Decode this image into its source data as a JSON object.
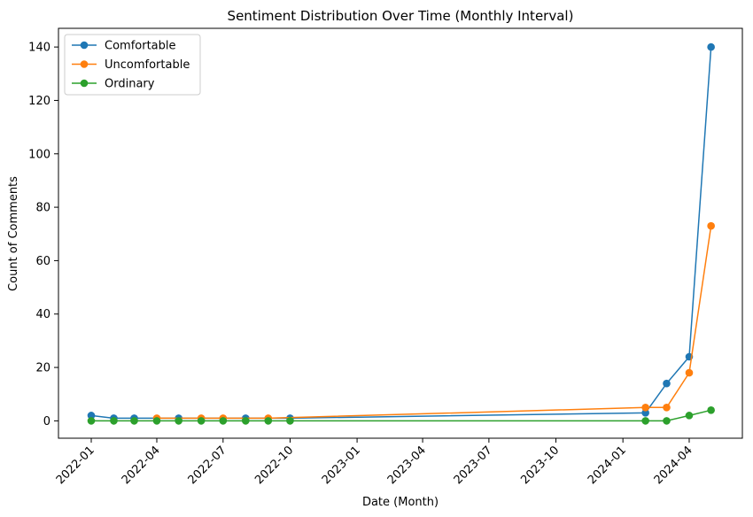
{
  "chart_data": {
    "type": "line",
    "title": "Sentiment Distribution Over Time (Monthly Interval)",
    "xlabel": "Date (Month)",
    "ylabel": "Count of Comments",
    "x_ticks": [
      "2022-01",
      "2022-04",
      "2022-07",
      "2022-10",
      "2023-01",
      "2023-04",
      "2023-07",
      "2023-10",
      "2024-01",
      "2024-04"
    ],
    "y_ticks": [
      0,
      20,
      40,
      60,
      80,
      100,
      120,
      140
    ],
    "ylim": [
      -6.5,
      147
    ],
    "xlim": [
      "2021-11-17",
      "2024-06-13"
    ],
    "grid": false,
    "legend_position": "upper-left",
    "series": [
      {
        "name": "Comfortable",
        "color": "#1f77b4",
        "points": [
          [
            "2022-01-01",
            2
          ],
          [
            "2022-02-01",
            1
          ],
          [
            "2022-03-01",
            1
          ],
          [
            "2022-05-01",
            1
          ],
          [
            "2022-08-01",
            1
          ],
          [
            "2022-10-01",
            1
          ],
          [
            "2024-02-01",
            3
          ],
          [
            "2024-03-01",
            14
          ],
          [
            "2024-04-01",
            24
          ],
          [
            "2024-05-01",
            140
          ]
        ]
      },
      {
        "name": "Uncomfortable",
        "color": "#ff7f0e",
        "points": [
          [
            "2022-04-01",
            1
          ],
          [
            "2022-06-01",
            1
          ],
          [
            "2022-07-01",
            1
          ],
          [
            "2022-09-01",
            1
          ],
          [
            "2024-02-01",
            5
          ],
          [
            "2024-03-01",
            5
          ],
          [
            "2024-04-01",
            18
          ],
          [
            "2024-05-01",
            73
          ]
        ]
      },
      {
        "name": "Ordinary",
        "color": "#2ca02c",
        "points": [
          [
            "2022-01-01",
            0
          ],
          [
            "2022-02-01",
            0
          ],
          [
            "2022-03-01",
            0
          ],
          [
            "2022-04-01",
            0
          ],
          [
            "2022-05-01",
            0
          ],
          [
            "2022-06-01",
            0
          ],
          [
            "2022-07-01",
            0
          ],
          [
            "2022-08-01",
            0
          ],
          [
            "2022-09-01",
            0
          ],
          [
            "2022-10-01",
            0
          ],
          [
            "2024-02-01",
            0
          ],
          [
            "2024-03-01",
            0
          ],
          [
            "2024-04-01",
            2
          ],
          [
            "2024-05-01",
            4
          ]
        ]
      }
    ]
  }
}
